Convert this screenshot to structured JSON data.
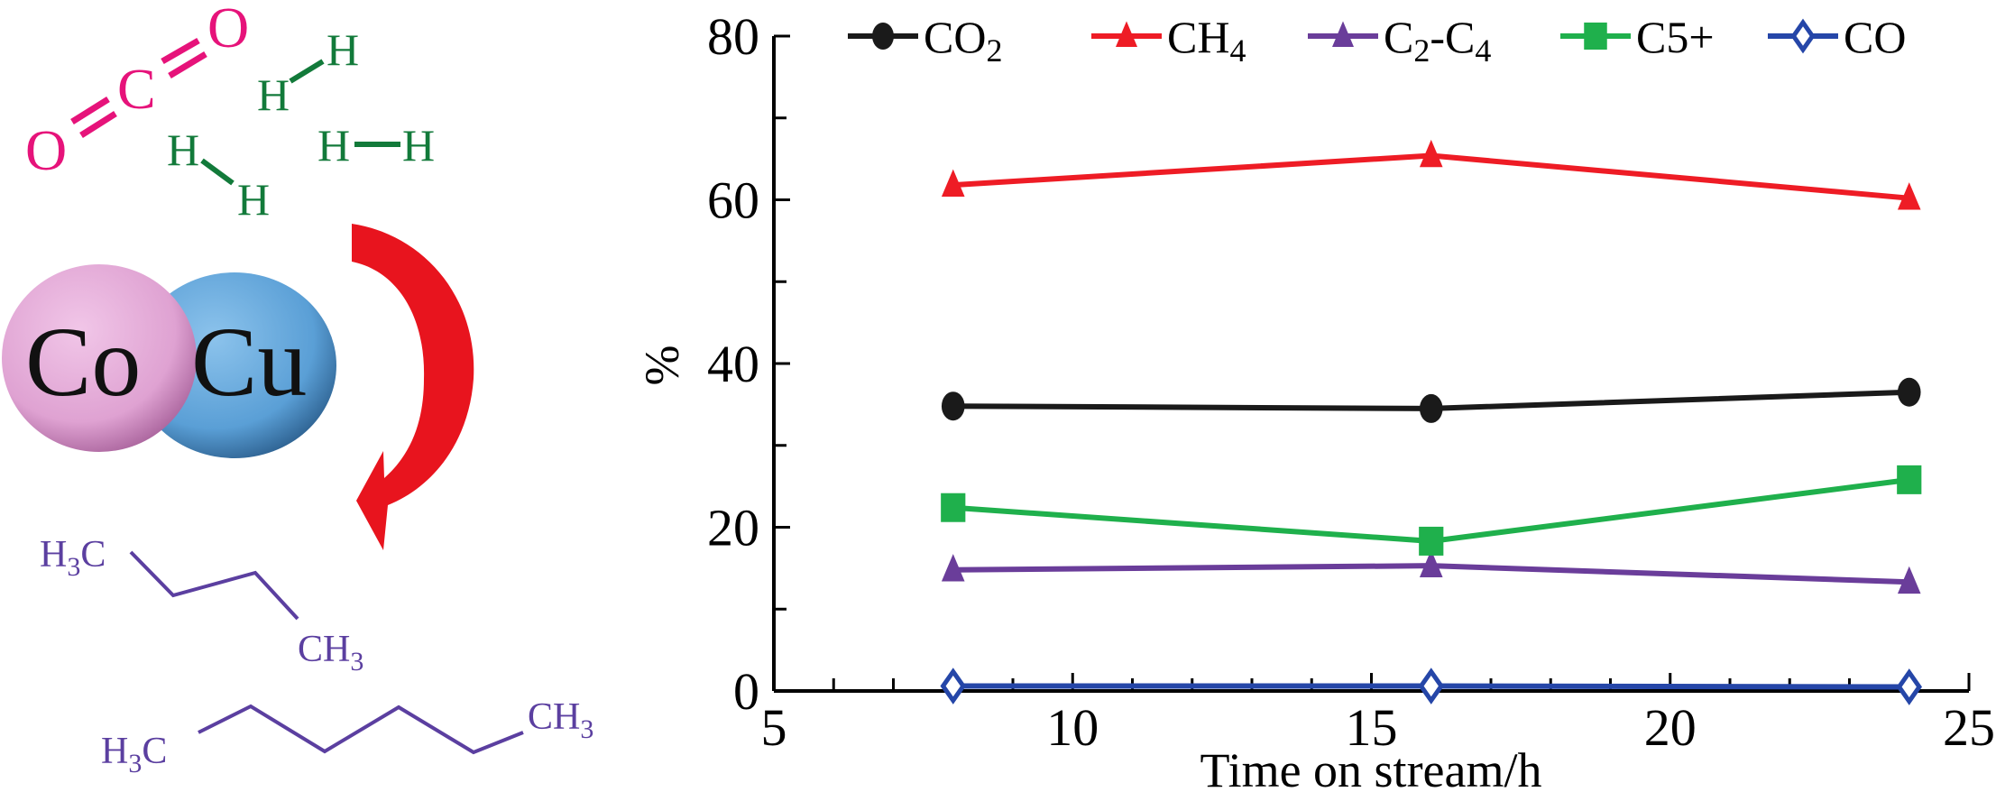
{
  "scheme": {
    "co2_atoms": [
      "O",
      "C",
      "O"
    ],
    "h2_molecules": [
      [
        "H",
        "H"
      ],
      [
        "H",
        "H"
      ],
      [
        "H",
        "H"
      ]
    ],
    "catalyst": {
      "left": "Co",
      "right": "Cu"
    },
    "product1": {
      "left": "H",
      "left_sub": "3",
      "left_tail": "C",
      "right": "CH",
      "right_sub": "3"
    },
    "product2": {
      "left": "H",
      "left_sub": "3",
      "left_tail": "C",
      "right": "CH",
      "right_sub": "3"
    },
    "colors": {
      "co2": "#e6137a",
      "h2": "#127a3a",
      "co": "#e0a6d3",
      "cu": "#5ba3d9",
      "arrow": "#e8141e",
      "alkane": "#5b3fa0"
    }
  },
  "chart_data": {
    "type": "line",
    "title": "",
    "xlabel": "Time on stream/h",
    "ylabel": "%",
    "xlim": [
      5,
      25
    ],
    "ylim": [
      0,
      80
    ],
    "xticks": [
      5,
      10,
      15,
      20,
      25
    ],
    "yticks": [
      0,
      20,
      40,
      60,
      80
    ],
    "grid": false,
    "legend_position": "top",
    "x": [
      8,
      16,
      24
    ],
    "series": [
      {
        "name": "CO2",
        "label_main": "CO",
        "label_sub": "2",
        "label_rest": "",
        "color": "#1a1a1a",
        "marker": "circle",
        "values": [
          34.8,
          34.5,
          36.5
        ]
      },
      {
        "name": "CH4",
        "label_main": "CH",
        "label_sub": "4",
        "label_rest": "",
        "color": "#ee1c25",
        "marker": "triangle",
        "values": [
          61.8,
          65.4,
          60.2
        ]
      },
      {
        "name": "C2-C4",
        "label_main": "C",
        "label_sub": "2",
        "label_rest": "-C",
        "label_sub2": "4",
        "color": "#6a3d9a",
        "marker": "triangle",
        "values": [
          14.8,
          15.3,
          13.3
        ]
      },
      {
        "name": "C5+",
        "label_main": "C5+",
        "label_sub": "",
        "label_rest": "",
        "color": "#1fb04c",
        "marker": "square",
        "values": [
          22.4,
          18.3,
          25.8
        ]
      },
      {
        "name": "CO",
        "label_main": "CO",
        "label_sub": "",
        "label_rest": "",
        "color": "#2546a8",
        "marker": "diamond-open",
        "values": [
          0.6,
          0.6,
          0.5
        ]
      }
    ]
  }
}
